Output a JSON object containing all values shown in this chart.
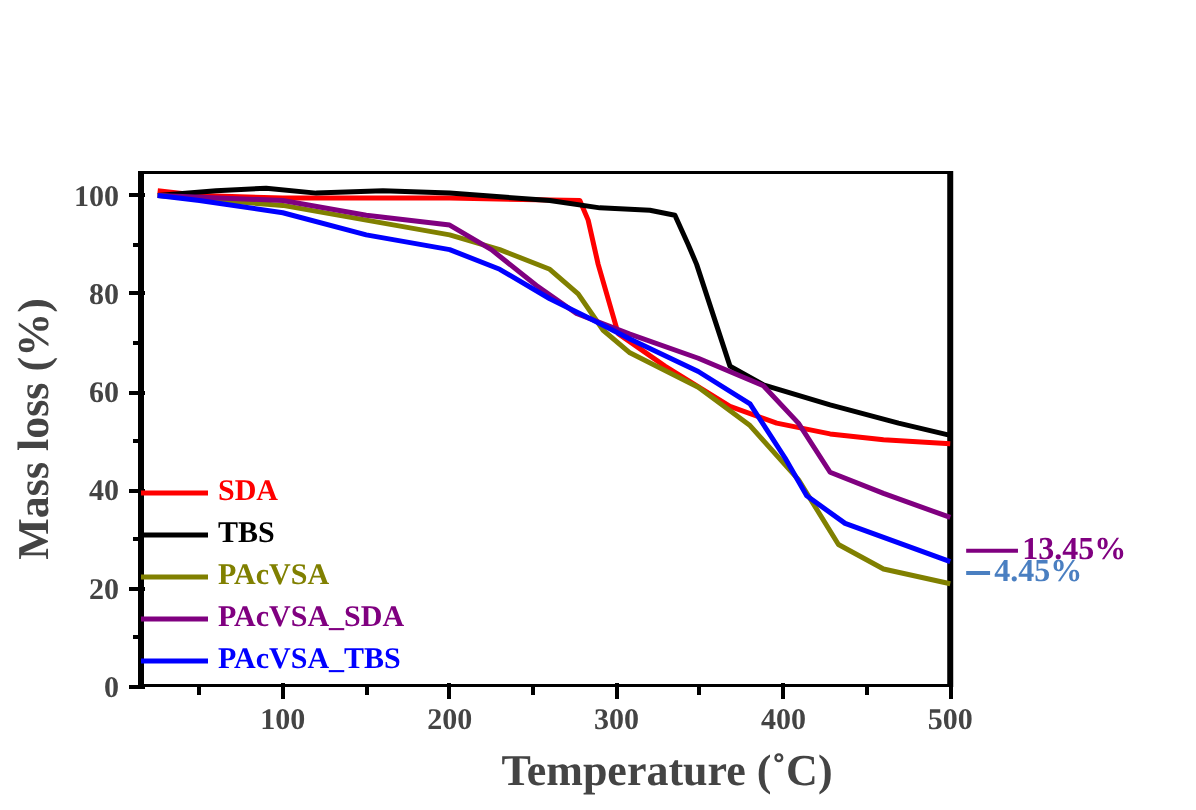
{
  "chart_data": {
    "type": "line",
    "xlabel": "Temperature (˚C)",
    "ylabel": "Mass loss (%)",
    "xlim": [
      15,
      500
    ],
    "ylim": [
      0,
      105
    ],
    "xticks": [
      100,
      200,
      300,
      400,
      500
    ],
    "yticks": [
      0,
      20,
      40,
      60,
      80,
      100
    ],
    "legend": "bottom left",
    "grid": false,
    "line_style": "solid",
    "marker": "none",
    "series": [
      {
        "name": "SDA",
        "color": "#ff0000",
        "x": [
          25,
          50,
          100,
          200,
          278,
          283,
          289,
          301,
          329,
          368,
          396,
          428,
          460,
          500
        ],
        "values": [
          101,
          100,
          99.5,
          99.5,
          99,
          95,
          86,
          71.9,
          65.3,
          57.1,
          53.7,
          51.5,
          50.3,
          49.5
        ]
      },
      {
        "name": "TBS",
        "color": "#000000",
        "x": [
          25,
          60,
          90,
          120,
          160,
          200,
          260,
          290,
          320,
          335,
          343,
          348,
          368,
          388,
          428,
          469,
          500
        ],
        "values": [
          100,
          101,
          101.5,
          100.5,
          101,
          100.5,
          99,
          97.5,
          97,
          96,
          90,
          86,
          65.3,
          61.5,
          57.4,
          53.7,
          51.2
        ]
      },
      {
        "name": "PAcVSA",
        "color": "#808000",
        "x": [
          25,
          100,
          150,
          200,
          230,
          260,
          277,
          292,
          308,
          349,
          380,
          409,
          433,
          460,
          500
        ],
        "values": [
          100,
          98,
          95,
          92,
          89,
          85,
          80,
          72.6,
          68,
          61,
          53.2,
          42.2,
          29,
          24,
          21
        ]
      },
      {
        "name": "PAcVSA_SDA",
        "color": "#800080",
        "x": [
          25,
          100,
          150,
          200,
          225,
          252,
          276,
          308,
          349,
          388,
          409,
          428,
          460,
          500
        ],
        "values": [
          100,
          99,
          96,
          94,
          89,
          81.7,
          76,
          71.8,
          66.9,
          61.3,
          53.7,
          43.7,
          39.4,
          34.5
        ]
      },
      {
        "name": "PAcVSA_TBS",
        "color": "#0000ff",
        "x": [
          25,
          50,
          100,
          150,
          200,
          230,
          260,
          284,
          308,
          349,
          380,
          401,
          414,
          437,
          500
        ],
        "values": [
          100,
          99,
          96.5,
          92,
          89,
          85,
          79,
          75,
          70.8,
          64.2,
          57.6,
          46.6,
          38.9,
          33.3,
          25.5
        ]
      }
    ],
    "annotations": [
      {
        "text": "13.45%",
        "x": 500,
        "y": 27.7
      },
      {
        "text": "4.45%",
        "x": 500,
        "y": 23.2
      }
    ]
  }
}
